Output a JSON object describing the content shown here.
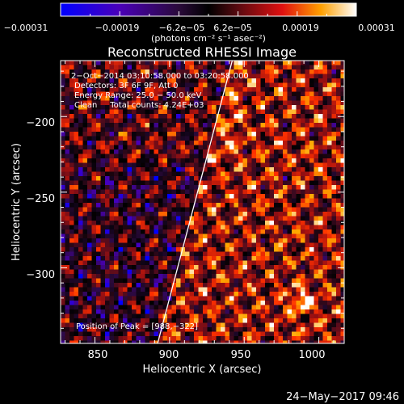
{
  "chart_data": {
    "type": "heatmap",
    "title": "Reconstructed RHESSI Image",
    "xlabel": "Heliocentric X (arcsec)",
    "ylabel": "Heliocentric Y (arcsec)",
    "xlim": [
      827,
      1017
    ],
    "ylim": [
      -350,
      -163
    ],
    "x_ticks": [
      850,
      900,
      950,
      1000
    ],
    "x_tick_labels": [
      "850",
      "900",
      "950",
      "1000"
    ],
    "y_ticks": [
      -200,
      -250,
      -300
    ],
    "y_tick_labels": [
      "−200",
      "−250",
      "−300"
    ],
    "colorbar": {
      "range": [
        -0.00031,
        0.00031
      ],
      "tick_labels": [
        "−0.00031",
        "−0.00019",
        "−6.2e−05",
        "6.2e−05",
        "0.00019",
        "0.00031"
      ],
      "unit": "(photons cm⁻² s⁻¹ asec⁻²)"
    },
    "info": {
      "time": "2−Oct−2014 03:10:58.000 to 03:20:58.000",
      "detectors": "Detectors: 3F 6F 9F, Att 0",
      "energy": "Energy Range: 25.0 − 50.0 keV",
      "clean": "Clean     Total counts: 4.24E+03"
    },
    "peak_label": "Position of Peak = [988,−322]",
    "peak": [
      988,
      -322
    ],
    "limb_line": [
      [
        892,
        -350
      ],
      [
        942,
        -163
      ]
    ],
    "colormap": [
      "#0000ff",
      "#4a00b8",
      "#2a0a3a",
      "#000000",
      "#3a0a20",
      "#a01010",
      "#ff3000",
      "#ffa800",
      "#ffffff"
    ],
    "grid": false
  },
  "footer": {
    "timestamp": "24−May−2017 09:46"
  }
}
